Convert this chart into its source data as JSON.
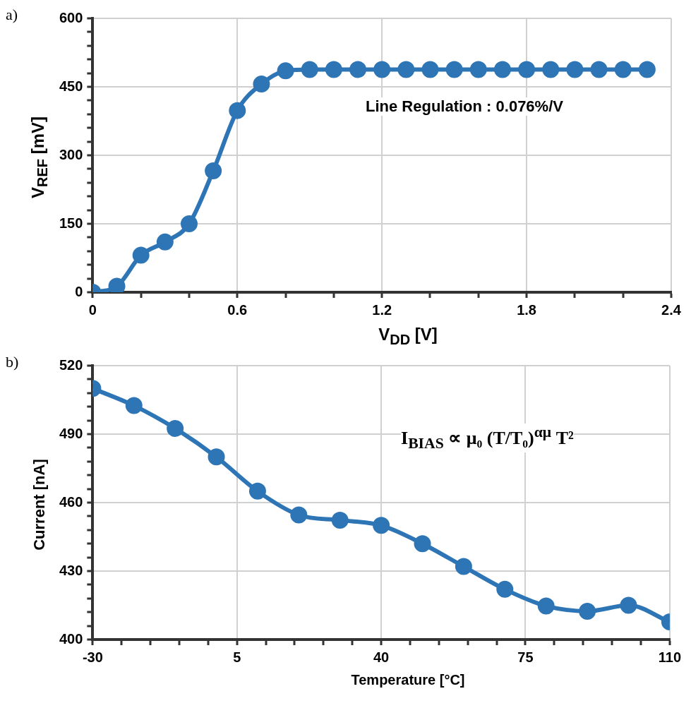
{
  "chart_data": [
    {
      "type": "line",
      "title": "a)",
      "xlabel": "V$_{DD}$ [V]",
      "ylabel": "V$_{REF}$ [mV]",
      "annotations": [
        "Line Regulation : 0.076%/V"
      ],
      "x": [
        0,
        0.1,
        0.2,
        0.3,
        0.4,
        0.5,
        0.6,
        0.7,
        0.8,
        0.9,
        1.0,
        1.1,
        1.2,
        1.3,
        1.4,
        1.5,
        1.6,
        1.7,
        1.8,
        1.9,
        2.0,
        2.1,
        2.2,
        2.3
      ],
      "series": [
        {
          "color": "#2e75b6",
          "values": [
            0,
            13,
            81,
            110,
            150,
            266,
            398,
            456,
            485,
            488,
            488,
            488,
            488,
            488,
            488,
            488,
            488,
            488,
            488,
            488,
            488,
            488,
            488,
            488
          ]
        }
      ],
      "xlim": [
        0,
        2.4
      ],
      "xticks": [
        0,
        {
          "value": 0.2,
          "label": null
        },
        {
          "value": 0.4,
          "label": null
        },
        0.6,
        {
          "value": 0.8,
          "label": null
        },
        {
          "value": 1.0,
          "label": null
        },
        1.2,
        {
          "value": 1.4,
          "label": null
        },
        {
          "value": 1.6,
          "label": null
        },
        1.8,
        {
          "value": 2.0,
          "label": null
        },
        {
          "value": 2.2,
          "label": null
        },
        2.4
      ],
      "ylim": [
        0,
        600
      ],
      "yticks": [
        0,
        {
          "value": 30,
          "label": null
        },
        {
          "value": 60,
          "label": null
        },
        {
          "value": 90,
          "label": null
        },
        {
          "value": 120,
          "label": null
        },
        150,
        {
          "value": 180,
          "label": null
        },
        {
          "value": 210,
          "label": null
        },
        {
          "value": 240,
          "label": null
        },
        {
          "value": 270,
          "label": null
        },
        300,
        {
          "value": 330,
          "label": null
        },
        {
          "value": 360,
          "label": null
        },
        {
          "value": 390,
          "label": null
        },
        {
          "value": 420,
          "label": null
        },
        450,
        {
          "value": 480,
          "label": null
        },
        {
          "value": 510,
          "label": null
        },
        {
          "value": 540,
          "label": null
        },
        {
          "value": 570,
          "label": null
        },
        600
      ],
      "grid": true,
      "marker": "circle",
      "line_style": "solid",
      "legend": false
    },
    {
      "type": "line",
      "title": "b)",
      "xlabel": "Temperature [°C]",
      "ylabel": "Current [nA]",
      "annotations": [
        "I$_{BIAS}$ ∝ μ₀ (T/T₀)$^{αμ}$ T²"
      ],
      "x": [
        -30,
        -20,
        -10,
        0,
        10,
        20,
        30,
        40,
        50,
        60,
        70,
        80,
        90,
        100,
        110
      ],
      "series": [
        {
          "color": "#2e75b6",
          "values": [
            510,
            502.5,
            492.5,
            480,
            465,
            454.6,
            452.3,
            450,
            442,
            432,
            422,
            414.7,
            412.4,
            415,
            407.7
          ]
        }
      ],
      "xlim": [
        -30,
        110
      ],
      "xticks": [
        -30,
        {
          "value": -23,
          "label": null
        },
        {
          "value": -16,
          "label": null
        },
        {
          "value": -9,
          "label": null
        },
        {
          "value": -2,
          "label": null
        },
        5,
        {
          "value": 12,
          "label": null
        },
        {
          "value": 19,
          "label": null
        },
        {
          "value": 26,
          "label": null
        },
        {
          "value": 33,
          "label": null
        },
        40,
        {
          "value": 47,
          "label": null
        },
        {
          "value": 54,
          "label": null
        },
        {
          "value": 61,
          "label": null
        },
        {
          "value": 68,
          "label": null
        },
        75,
        {
          "value": 82,
          "label": null
        },
        {
          "value": 89,
          "label": null
        },
        {
          "value": 96,
          "label": null
        },
        {
          "value": 103,
          "label": null
        },
        110
      ],
      "ylim": [
        400,
        520
      ],
      "yticks": [
        400,
        {
          "value": 406,
          "label": null
        },
        {
          "value": 412,
          "label": null
        },
        {
          "value": 418,
          "label": null
        },
        {
          "value": 424,
          "label": null
        },
        430,
        {
          "value": 436,
          "label": null
        },
        {
          "value": 442,
          "label": null
        },
        {
          "value": 448,
          "label": null
        },
        {
          "value": 454,
          "label": null
        },
        460,
        {
          "value": 466,
          "label": null
        },
        {
          "value": 472,
          "label": null
        },
        {
          "value": 478,
          "label": null
        },
        {
          "value": 484,
          "label": null
        },
        490,
        {
          "value": 496,
          "label": null
        },
        {
          "value": 502,
          "label": null
        },
        {
          "value": 508,
          "label": null
        },
        {
          "value": 514,
          "label": null
        },
        520
      ],
      "grid": true,
      "marker": "circle",
      "line_style": "solid",
      "legend": false
    }
  ]
}
